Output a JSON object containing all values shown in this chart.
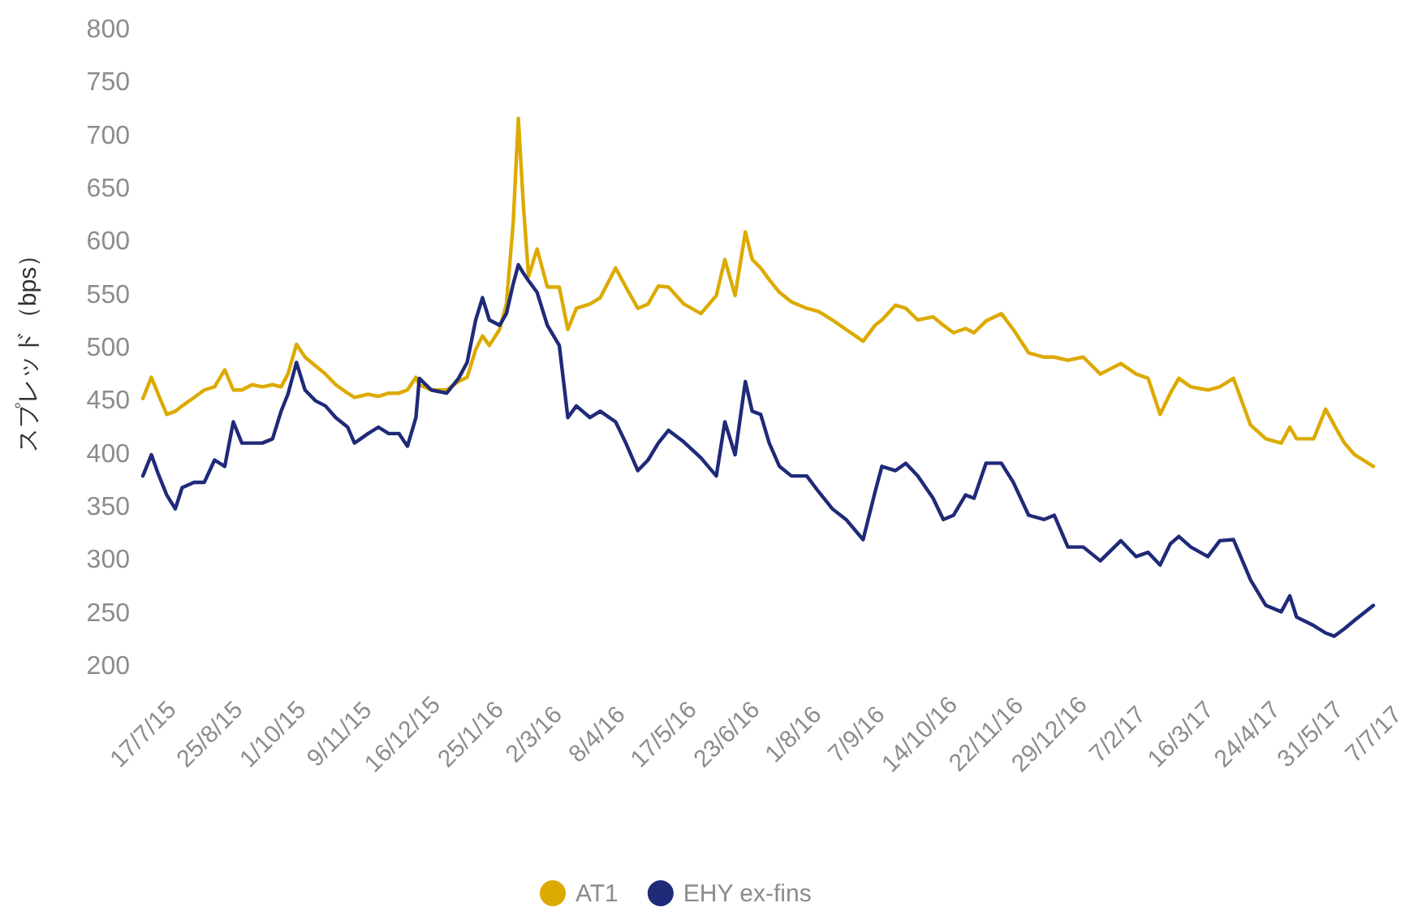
{
  "chart_data": {
    "type": "line",
    "ylabel": "スプレッド（bps）",
    "x": [
      "2015-07-17",
      "2015-07-22",
      "2015-07-26",
      "2015-07-31",
      "2015-08-05",
      "2015-08-09",
      "2015-08-16",
      "2015-08-22",
      "2015-08-28",
      "2015-09-03",
      "2015-09-08",
      "2015-09-13",
      "2015-09-19",
      "2015-09-25",
      "2015-10-01",
      "2015-10-06",
      "2015-10-10",
      "2015-10-15",
      "2015-10-20",
      "2015-10-26",
      "2015-11-01",
      "2015-11-07",
      "2015-11-14",
      "2015-11-18",
      "2015-11-26",
      "2015-12-02",
      "2015-12-08",
      "2015-12-14",
      "2015-12-19",
      "2015-12-24",
      "2015-12-26",
      "2016-01-02",
      "2016-01-11",
      "2016-01-18",
      "2016-01-23",
      "2016-01-28",
      "2016-02-01",
      "2016-02-05",
      "2016-02-11",
      "2016-02-15",
      "2016-02-19",
      "2016-02-22",
      "2016-02-25",
      "2016-02-28",
      "2016-03-04",
      "2016-03-10",
      "2016-03-17",
      "2016-03-22",
      "2016-03-27",
      "2016-04-04",
      "2016-04-10",
      "2016-04-19",
      "2016-04-25",
      "2016-05-02",
      "2016-05-08",
      "2016-05-14",
      "2016-05-20",
      "2016-05-29",
      "2016-06-08",
      "2016-06-17",
      "2016-06-22",
      "2016-06-28",
      "2016-07-04",
      "2016-07-08",
      "2016-07-13",
      "2016-07-18",
      "2016-07-24",
      "2016-07-31",
      "2016-08-09",
      "2016-08-16",
      "2016-08-24",
      "2016-09-01",
      "2016-09-11",
      "2016-09-18",
      "2016-09-22",
      "2016-09-30",
      "2016-10-06",
      "2016-10-13",
      "2016-10-22",
      "2016-10-28",
      "2016-11-03",
      "2016-11-10",
      "2016-11-15",
      "2016-11-22",
      "2016-12-01",
      "2016-12-08",
      "2016-12-17",
      "2016-12-26",
      "2017-01-01",
      "2017-01-09",
      "2017-01-18",
      "2017-01-28",
      "2017-02-09",
      "2017-02-18",
      "2017-02-25",
      "2017-03-04",
      "2017-03-10",
      "2017-03-15",
      "2017-03-22",
      "2017-04-01",
      "2017-04-08",
      "2017-04-16",
      "2017-04-26",
      "2017-05-05",
      "2017-05-14",
      "2017-05-19",
      "2017-05-23",
      "2017-06-02",
      "2017-06-09",
      "2017-06-14",
      "2017-06-20",
      "2017-06-26",
      "2017-07-07"
    ],
    "series": [
      {
        "name": "AT1",
        "color": "#dcaa00",
        "values": [
          452,
          472,
          456,
          437,
          440,
          445,
          453,
          460,
          463,
          479,
          460,
          460,
          465,
          463,
          465,
          463,
          475,
          503,
          491,
          483,
          475,
          465,
          457,
          453,
          456,
          454,
          457,
          457,
          460,
          472,
          465,
          460,
          460,
          468,
          472,
          498,
          511,
          502,
          517,
          541,
          618,
          716,
          633,
          567,
          593,
          557,
          557,
          517,
          537,
          541,
          547,
          575,
          557,
          537,
          541,
          558,
          557,
          541,
          532,
          549,
          583,
          549,
          609,
          583,
          575,
          564,
          552,
          543,
          537,
          534,
          526,
          517,
          506,
          521,
          526,
          540,
          537,
          526,
          529,
          521,
          514,
          518,
          514,
          525,
          532,
          517,
          495,
          491,
          491,
          488,
          491,
          475,
          485,
          475,
          471,
          437,
          457,
          471,
          463,
          460,
          463,
          471,
          427,
          414,
          410,
          425,
          414,
          414,
          442,
          427,
          410,
          399,
          388
        ]
      },
      {
        "name": "EHY ex-fins",
        "color": "#1f2a78",
        "values": [
          379,
          399,
          381,
          361,
          348,
          368,
          373,
          373,
          394,
          388,
          430,
          410,
          410,
          410,
          414,
          440,
          456,
          486,
          460,
          450,
          445,
          434,
          425,
          410,
          419,
          425,
          419,
          419,
          407,
          434,
          471,
          460,
          457,
          471,
          486,
          526,
          547,
          526,
          521,
          532,
          560,
          578,
          570,
          563,
          552,
          521,
          502,
          434,
          445,
          434,
          440,
          430,
          410,
          384,
          394,
          410,
          422,
          411,
          396,
          379,
          430,
          399,
          468,
          440,
          437,
          410,
          388,
          379,
          379,
          364,
          348,
          338,
          319,
          364,
          388,
          384,
          391,
          379,
          358,
          338,
          342,
          361,
          358,
          391,
          391,
          373,
          342,
          338,
          342,
          312,
          312,
          299,
          318,
          303,
          307,
          295,
          315,
          322,
          312,
          303,
          318,
          319,
          281,
          257,
          251,
          266,
          246,
          238,
          231,
          228,
          235,
          243,
          257
        ]
      }
    ],
    "xlim": [
      "2015-07-17",
      "2017-07-07"
    ],
    "xticks": [
      {
        "value": "2015-07-17",
        "label": "17/7/15"
      },
      {
        "value": "2015-08-25",
        "label": "25/8/15"
      },
      {
        "value": "2015-10-01",
        "label": "1/10/15"
      },
      {
        "value": "2015-11-09",
        "label": "9/11/15"
      },
      {
        "value": "2015-12-16",
        "label": "16/12/15"
      },
      {
        "value": "2016-01-25",
        "label": "25/1/16"
      },
      {
        "value": "2016-03-02",
        "label": "2/3/16"
      },
      {
        "value": "2016-04-08",
        "label": "8/4/16"
      },
      {
        "value": "2016-05-17",
        "label": "17/5/16"
      },
      {
        "value": "2016-06-23",
        "label": "23/6/16"
      },
      {
        "value": "2016-08-01",
        "label": "1/8/16"
      },
      {
        "value": "2016-09-07",
        "label": "7/9/16"
      },
      {
        "value": "2016-10-14",
        "label": "14/10/16"
      },
      {
        "value": "2016-11-22",
        "label": "22/11/16"
      },
      {
        "value": "2016-12-29",
        "label": "29/12/16"
      },
      {
        "value": "2017-02-07",
        "label": "7/2/17"
      },
      {
        "value": "2017-03-16",
        "label": "16/3/17"
      },
      {
        "value": "2017-04-24",
        "label": "24/4/17"
      },
      {
        "value": "2017-05-31",
        "label": "31/5/17"
      },
      {
        "value": "2017-07-07",
        "label": "7/7/17"
      }
    ],
    "ylim": [
      200,
      800
    ],
    "yticks": [
      200,
      250,
      300,
      350,
      400,
      450,
      500,
      550,
      600,
      650,
      700,
      750,
      800
    ],
    "legend": "bottom"
  }
}
